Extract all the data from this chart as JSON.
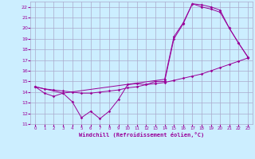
{
  "xlabel": "Windchill (Refroidissement éolien,°C)",
  "bg_color": "#cceeff",
  "grid_color": "#aaaacc",
  "line_color": "#990099",
  "xlim": [
    -0.5,
    23.5
  ],
  "ylim": [
    11,
    22.5
  ],
  "yticks": [
    11,
    12,
    13,
    14,
    15,
    16,
    17,
    18,
    19,
    20,
    21,
    22
  ],
  "xticks": [
    0,
    1,
    2,
    3,
    4,
    5,
    6,
    7,
    8,
    9,
    10,
    11,
    12,
    13,
    14,
    15,
    16,
    17,
    18,
    19,
    20,
    21,
    22,
    23
  ],
  "curve1_x": [
    0,
    1,
    2,
    3,
    4,
    5,
    6,
    7,
    8,
    9,
    10,
    11,
    12,
    13,
    14,
    15,
    16,
    17,
    18,
    19,
    20,
    21,
    22,
    23
  ],
  "curve1_y": [
    14.5,
    13.9,
    13.6,
    13.9,
    13.1,
    11.6,
    12.2,
    11.5,
    12.2,
    13.3,
    14.7,
    14.8,
    14.7,
    15.0,
    15.0,
    19.0,
    20.4,
    22.3,
    22.2,
    22.0,
    21.7,
    20.0,
    18.6,
    17.3
  ],
  "curve2_x": [
    0,
    1,
    2,
    3,
    4,
    5,
    6,
    7,
    8,
    9,
    10,
    11,
    12,
    13,
    14,
    15,
    16,
    17,
    18,
    19,
    20,
    21,
    22,
    23
  ],
  "curve2_y": [
    14.5,
    14.3,
    14.2,
    14.1,
    14.0,
    13.9,
    13.9,
    14.0,
    14.1,
    14.2,
    14.4,
    14.5,
    14.7,
    14.8,
    14.9,
    15.1,
    15.3,
    15.5,
    15.7,
    16.0,
    16.3,
    16.6,
    16.9,
    17.2
  ],
  "curve3_x": [
    0,
    3,
    14,
    15,
    16,
    17,
    18,
    19,
    20,
    21,
    22,
    23
  ],
  "curve3_y": [
    14.5,
    13.9,
    15.2,
    19.2,
    20.5,
    22.3,
    22.0,
    21.8,
    21.5,
    20.0,
    18.6,
    17.3
  ]
}
